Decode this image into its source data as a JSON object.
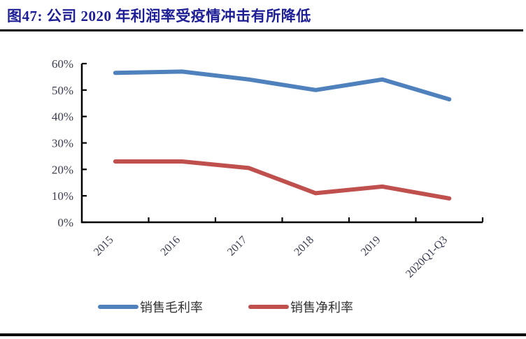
{
  "page": {
    "title": "图47:  公司 2020 年利润率受疫情冲击有所降低"
  },
  "colors": {
    "title_text": "#1e1e96",
    "axis": "#000000",
    "tick_label": "#3b3e52",
    "gross_margin_line": "#4F81BD",
    "net_margin_line": "#C0504D"
  },
  "chart_data": {
    "type": "line",
    "title": "公司 2020 年利润率受疫情冲击有所降低",
    "categories": [
      "2015",
      "2016",
      "2017",
      "2018",
      "2019",
      "2020Q1-Q3"
    ],
    "series": [
      {
        "name": "销售毛利率",
        "color": "#4F81BD",
        "values": [
          56.5,
          57,
          54,
          50,
          54,
          46.5
        ]
      },
      {
        "name": "销售净利率",
        "color": "#C0504D",
        "values": [
          23,
          23,
          20.5,
          11,
          13.5,
          9
        ]
      }
    ],
    "xlabel": "",
    "ylabel": "",
    "ylim": [
      0,
      60
    ],
    "y_tick_step": 10,
    "y_tick_labels": [
      "0%",
      "10%",
      "20%",
      "30%",
      "40%",
      "50%",
      "60%"
    ],
    "x_label_rotation_deg": -45,
    "grid": false,
    "legend_position": "bottom"
  }
}
